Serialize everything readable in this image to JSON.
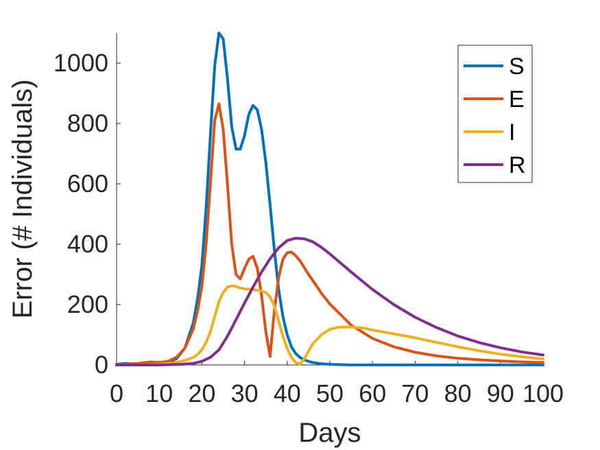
{
  "chart_data": {
    "type": "line",
    "title": "",
    "xlabel": "Days",
    "ylabel": "Error (# Individuals)",
    "xlim": [
      0,
      100
    ],
    "ylim": [
      0,
      1100
    ],
    "xticks": [
      "0",
      "10",
      "20",
      "30",
      "40",
      "50",
      "60",
      "70",
      "80",
      "90",
      "100"
    ],
    "yticks": [
      "0",
      "200",
      "400",
      "600",
      "800",
      "1000"
    ],
    "grid": false,
    "legend_position": "top-right",
    "series": [
      {
        "name": "S",
        "color": "#0072BD",
        "x": [
          0,
          2,
          5,
          8,
          10,
          12,
          14,
          16,
          18,
          19,
          20,
          21,
          22,
          23,
          24,
          25,
          26,
          27,
          28,
          29,
          30,
          31,
          32,
          33,
          34,
          35,
          36,
          37,
          38,
          39,
          40,
          41,
          42,
          43,
          44,
          45,
          46,
          48,
          50,
          55,
          60,
          70,
          80,
          90,
          100
        ],
        "y": [
          2,
          5,
          3,
          8,
          5,
          8,
          20,
          55,
          140,
          220,
          330,
          520,
          760,
          990,
          1100,
          1080,
          950,
          790,
          715,
          715,
          760,
          830,
          860,
          845,
          780,
          670,
          530,
          380,
          250,
          160,
          100,
          60,
          38,
          25,
          17,
          12,
          8,
          4,
          2,
          0,
          0,
          0,
          0,
          0,
          0
        ]
      },
      {
        "name": "E",
        "color": "#D95319",
        "x": [
          0,
          2,
          5,
          8,
          10,
          12,
          14,
          16,
          18,
          19,
          20,
          21,
          22,
          23,
          24,
          25,
          26,
          27,
          28,
          29,
          30,
          31,
          32,
          33,
          34,
          35,
          36,
          37,
          38,
          39,
          40,
          41,
          42,
          43,
          44,
          45,
          46,
          48,
          50,
          55,
          60,
          65,
          70,
          75,
          80,
          85,
          90,
          95,
          100
        ],
        "y": [
          0,
          2,
          5,
          10,
          8,
          12,
          25,
          55,
          120,
          180,
          260,
          400,
          600,
          810,
          865,
          780,
          600,
          400,
          300,
          285,
          320,
          350,
          360,
          320,
          230,
          110,
          28,
          180,
          290,
          350,
          372,
          374,
          362,
          345,
          323,
          300,
          280,
          238,
          202,
          132,
          88,
          60,
          42,
          30,
          22,
          17,
          13,
          10,
          8
        ]
      },
      {
        "name": "I",
        "color": "#EDB120",
        "x": [
          0,
          5,
          10,
          14,
          16,
          18,
          19,
          20,
          21,
          22,
          23,
          24,
          25,
          26,
          27,
          28,
          29,
          30,
          32,
          34,
          35,
          36,
          37,
          38,
          39,
          40,
          41,
          42,
          43,
          44,
          45,
          46,
          48,
          50,
          52,
          55,
          58,
          60,
          65,
          70,
          75,
          80,
          85,
          90,
          95,
          100
        ],
        "y": [
          0,
          0,
          2,
          8,
          15,
          25,
          35,
          50,
          75,
          110,
          160,
          210,
          240,
          258,
          262,
          260,
          255,
          252,
          250,
          245,
          240,
          225,
          195,
          145,
          95,
          55,
          25,
          8,
          3,
          20,
          45,
          70,
          100,
          118,
          125,
          126,
          122,
          116,
          103,
          90,
          75,
          60,
          47,
          36,
          27,
          20
        ]
      },
      {
        "name": "R",
        "color": "#7E2F8E",
        "x": [
          0,
          5,
          10,
          15,
          18,
          20,
          22,
          24,
          26,
          28,
          30,
          32,
          34,
          36,
          38,
          40,
          42,
          44,
          46,
          48,
          50,
          55,
          60,
          65,
          70,
          75,
          80,
          85,
          90,
          95,
          100
        ],
        "y": [
          0,
          0,
          0,
          2,
          5,
          12,
          25,
          50,
          95,
          150,
          205,
          258,
          308,
          352,
          388,
          412,
          420,
          418,
          408,
          390,
          368,
          308,
          250,
          200,
          158,
          124,
          96,
          74,
          57,
          43,
          33
        ]
      }
    ]
  }
}
